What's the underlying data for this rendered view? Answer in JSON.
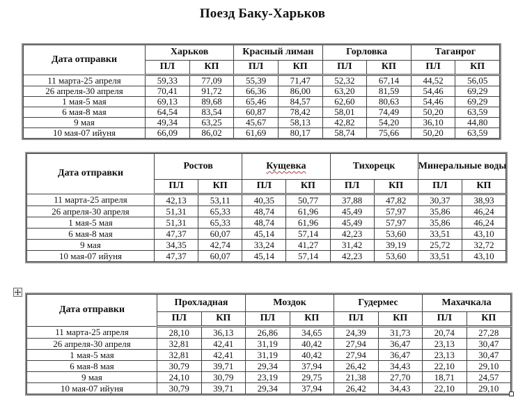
{
  "title": "Поезд Баку-Харьков",
  "shared": {
    "date_header": "Дата отправки",
    "class_headers": [
      "ПЛ",
      "КП"
    ]
  },
  "tables": [
    {
      "cities": [
        {
          "name": "Харьков"
        },
        {
          "name": "Красный лиман"
        },
        {
          "name": "Горловка"
        },
        {
          "name": "Таганрог"
        }
      ],
      "rows": [
        {
          "date": "11 марта-25 апреля",
          "values": [
            "59,33",
            "77,09",
            "55,39",
            "71,47",
            "52,32",
            "67,14",
            "44,52",
            "56,05"
          ]
        },
        {
          "date": "26 апреля-30 апреля",
          "values": [
            "70,41",
            "91,72",
            "66,36",
            "86,00",
            "63,20",
            "81,59",
            "54,46",
            "69,29"
          ]
        },
        {
          "date": "1 мая-5 мая",
          "values": [
            "69,13",
            "89,68",
            "65,46",
            "84,57",
            "62,60",
            "80,63",
            "54,46",
            "69,29"
          ]
        },
        {
          "date": "6 мая-8 мая",
          "values": [
            "64,54",
            "83,54",
            "60,87",
            "78,42",
            "58,01",
            "74,49",
            "50,20",
            "63,59"
          ]
        },
        {
          "date": "9 мая",
          "values": [
            "49,34",
            "63,25",
            "45,67",
            "58,13",
            "42,82",
            "54,20",
            "36,10",
            "44,80"
          ]
        },
        {
          "date": "10 мая-07",
          "date_err": "ийуня",
          "values": [
            "66,09",
            "86,02",
            "61,69",
            "80,17",
            "58,74",
            "75,66",
            "50,20",
            "63,59"
          ]
        }
      ]
    },
    {
      "cities": [
        {
          "name": "Ростов"
        },
        {
          "name": "Кущевка",
          "spellcheck": true
        },
        {
          "name": "Тихорецк"
        },
        {
          "name": "Минеральные воды"
        }
      ],
      "rows": [
        {
          "date": "11 марта-25 апреля",
          "values": [
            "42,13",
            "53,11",
            "40,35",
            "50,77",
            "37,88",
            "47,82",
            "30,37",
            "38,93"
          ]
        },
        {
          "date": "26 апреля-30 апреля",
          "values": [
            "51,31",
            "65,33",
            "48,74",
            "61,96",
            "45,49",
            "57,97",
            "35,86",
            "46,24"
          ]
        },
        {
          "date": "1 мая-5 мая",
          "values": [
            "51,31",
            "65,33",
            "48,74",
            "61,96",
            "45,49",
            "57,97",
            "35,86",
            "46,24"
          ]
        },
        {
          "date": "6 мая-8 мая",
          "values": [
            "47,37",
            "60,07",
            "45,14",
            "57,14",
            "42,23",
            "53,60",
            "33,51",
            "43,10"
          ]
        },
        {
          "date": "9 мая",
          "values": [
            "34,35",
            "42,74",
            "33,24",
            "41,27",
            "31,42",
            "39,19",
            "25,72",
            "32,72"
          ]
        },
        {
          "date": "10 мая-07",
          "date_err": "ийуня",
          "values": [
            "47,37",
            "60,07",
            "45,14",
            "57,14",
            "42,23",
            "53,60",
            "33,51",
            "43,10"
          ]
        }
      ]
    },
    {
      "cities": [
        {
          "name": "Прохладная"
        },
        {
          "name": "Моздок"
        },
        {
          "name": "Гудермес"
        },
        {
          "name": "Махачкала"
        }
      ],
      "rows": [
        {
          "date": "11 марта-25 апреля",
          "values": [
            "28,10",
            "36,13",
            "26,86",
            "34,65",
            "24,39",
            "31,73",
            "20,74",
            "27,28"
          ]
        },
        {
          "date": "26 апреля-30 апреля",
          "values": [
            "32,81",
            "42,41",
            "31,19",
            "40,42",
            "27,94",
            "36,47",
            "23,13",
            "30,47"
          ]
        },
        {
          "date": "1 мая-5 мая",
          "values": [
            "32,81",
            "42,41",
            "31,19",
            "40,42",
            "27,94",
            "36,47",
            "23,13",
            "30,47"
          ]
        },
        {
          "date": "6 мая-8 мая",
          "values": [
            "30,79",
            "39,71",
            "29,34",
            "37,94",
            "26,42",
            "34,43",
            "22,10",
            "29,10"
          ]
        },
        {
          "date": "9 мая",
          "values": [
            "24,10",
            "30,79",
            "23,19",
            "29,75",
            "21,38",
            "27,70",
            "18,71",
            "24,57"
          ]
        },
        {
          "date": "10 мая-07",
          "date_err": "ийуня",
          "values": [
            "30,79",
            "39,71",
            "29,34",
            "37,94",
            "26,42",
            "34,43",
            "22,10",
            "29,10"
          ]
        }
      ]
    }
  ],
  "date_col_widths": [
    175,
    183,
    187
  ],
  "icons": {
    "move_handle": "table-move-handle",
    "resize_handle": "table-resize-handle"
  }
}
